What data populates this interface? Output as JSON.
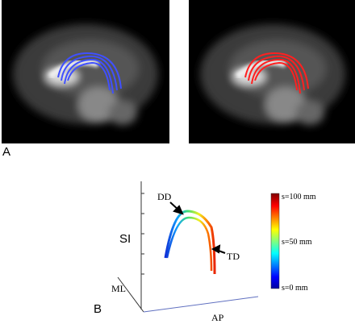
{
  "panels": {
    "a": {
      "label": "A"
    },
    "b": {
      "label": "B",
      "axes": {
        "si": "SI",
        "ml": "ML",
        "ap": "AP"
      },
      "annotations": {
        "dd": "DD",
        "td": "TD"
      },
      "colorbar": {
        "top": "s=100 mm",
        "middle": "s=50 mm",
        "bottom": "s=0 mm"
      }
    }
  }
}
